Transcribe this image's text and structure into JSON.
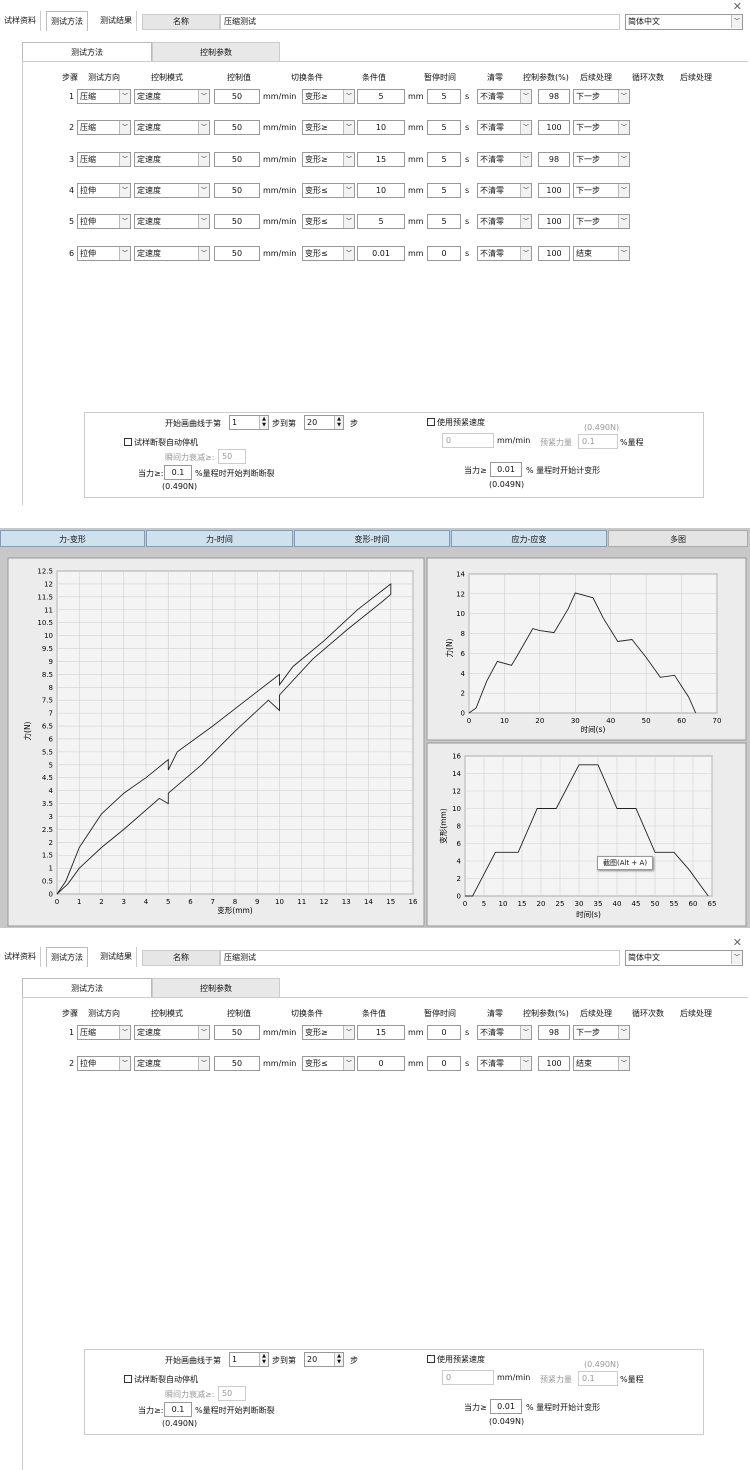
{
  "tabs": [
    "试样资料",
    "测试方法",
    "测试结果"
  ],
  "name_label": "名称",
  "panel1_name": "压缩测试",
  "panel3_name": "压缩测试",
  "language": "简体中文",
  "subtabs": [
    "测试方法",
    "控制参数"
  ],
  "headers": [
    "步骤",
    "测试方向",
    "控制模式",
    "控制值",
    "切换条件",
    "条件值",
    "暂停时间",
    "清零",
    "控制参数(%)",
    "后续处理",
    "循环次数",
    "后续处理"
  ],
  "rate_unit": "mm/min",
  "len_unit": "mm",
  "time_unit": "s",
  "panel1_steps": [
    {
      "no": "1",
      "dir": "压缩",
      "mode": "定速度",
      "val": "50",
      "cond": "变形≥",
      "cval": "5",
      "pause": "5",
      "zero": "不清零",
      "param": "98",
      "next": "下一步"
    },
    {
      "no": "2",
      "dir": "压缩",
      "mode": "定速度",
      "val": "50",
      "cond": "变形≥",
      "cval": "10",
      "pause": "5",
      "zero": "不清零",
      "param": "100",
      "next": "下一步"
    },
    {
      "no": "3",
      "dir": "压缩",
      "mode": "定速度",
      "val": "50",
      "cond": "变形≥",
      "cval": "15",
      "pause": "5",
      "zero": "不清零",
      "param": "98",
      "next": "下一步"
    },
    {
      "no": "4",
      "dir": "拉伸",
      "mode": "定速度",
      "val": "50",
      "cond": "变形≤",
      "cval": "10",
      "pause": "5",
      "zero": "不清零",
      "param": "100",
      "next": "下一步"
    },
    {
      "no": "5",
      "dir": "拉伸",
      "mode": "定速度",
      "val": "50",
      "cond": "变形≤",
      "cval": "5",
      "pause": "5",
      "zero": "不清零",
      "param": "100",
      "next": "下一步"
    },
    {
      "no": "6",
      "dir": "拉伸",
      "mode": "定速度",
      "val": "50",
      "cond": "变形≤",
      "cval": "0.01",
      "pause": "0",
      "zero": "不清零",
      "param": "100",
      "next": "结束"
    }
  ],
  "panel3_steps": [
    {
      "no": "1",
      "dir": "压缩",
      "mode": "定速度",
      "val": "50",
      "cond": "变形≥",
      "cval": "15",
      "pause": "0",
      "zero": "不清零",
      "param": "98",
      "next": "下一步"
    },
    {
      "no": "2",
      "dir": "拉伸",
      "mode": "定速度",
      "val": "50",
      "cond": "变形≤",
      "cval": "0",
      "pause": "0",
      "zero": "不清零",
      "param": "100",
      "next": "结束"
    }
  ],
  "bottom": {
    "start_curve": "开始画曲线于第",
    "start_val": "1",
    "step_to": "步到第",
    "step_to_val": "20",
    "step": "步",
    "auto_stop": "试样断裂自动停机",
    "instant_drop": "瞬间力衰减≥:",
    "instant_drop_val": "50",
    "force_ge": "当力≥:",
    "force_val": "0.1",
    "force_tail": "%量程时开始判断断裂",
    "force_n": "(0.490N)",
    "use_preload": "使用预紧速度",
    "preload_n": "(0.490N)",
    "preload_speed": "0",
    "preload_force": "预紧力量",
    "preload_force_val": "0.1",
    "range": "%量程",
    "deform_ge": "当力≥",
    "deform_val": "0.01",
    "deform_tail": "% 量程时开始计变形",
    "deform_n": "(0.049N)"
  },
  "chart_tabs": [
    "力-变形",
    "力-时间",
    "变形-时间",
    "应力-应变",
    "多图"
  ],
  "tooltip": "截图(Alt + A)",
  "chart_data": [
    {
      "type": "line",
      "xlabel": "变形(mm)",
      "ylabel": "力(N)",
      "xlim": [
        0,
        16
      ],
      "ylim": [
        0,
        12.5
      ],
      "xticks": [
        0,
        1,
        2,
        3,
        4,
        5,
        6,
        7,
        8,
        9,
        10,
        11,
        12,
        13,
        14,
        15,
        16
      ],
      "yticks": [
        0,
        0.5,
        1,
        1.5,
        2,
        2.5,
        3,
        3.5,
        4,
        4.5,
        5,
        5.5,
        6,
        6.5,
        7,
        7.5,
        8,
        8.5,
        9,
        9.5,
        10,
        10.5,
        11,
        11.5,
        12,
        12.5
      ],
      "x": [
        0,
        0.4,
        1,
        2,
        3,
        4,
        5,
        5,
        5.4,
        7,
        8.5,
        10,
        10,
        10.6,
        12,
        13.5,
        15,
        15,
        14.6,
        13,
        11.5,
        10,
        10,
        9.5,
        8,
        6.5,
        5,
        5,
        4.6,
        3,
        2,
        1,
        0.5,
        0
      ],
      "y": [
        0,
        0.5,
        1.8,
        3.1,
        3.9,
        4.5,
        5.2,
        4.8,
        5.5,
        6.5,
        7.5,
        8.5,
        8.1,
        8.8,
        9.8,
        11,
        12,
        11.6,
        11.3,
        10.2,
        9.1,
        7.7,
        7.1,
        7.5,
        6.3,
        5,
        3.9,
        3.5,
        3.7,
        2.5,
        1.8,
        1,
        0.4,
        0
      ]
    },
    {
      "type": "line",
      "xlabel": "时间(s)",
      "ylabel": "力(N)",
      "xlim": [
        0,
        70
      ],
      "ylim": [
        0,
        14
      ],
      "xticks": [
        0,
        10,
        20,
        30,
        40,
        50,
        60,
        70
      ],
      "yticks": [
        0,
        2,
        4,
        6,
        8,
        10,
        12,
        14
      ],
      "x": [
        0,
        2,
        5,
        8,
        12,
        14,
        18,
        20,
        24,
        28,
        30,
        35,
        38,
        42,
        46,
        50,
        54,
        58,
        62,
        64
      ],
      "y": [
        0,
        0.5,
        3.2,
        5.2,
        4.8,
        6,
        8.5,
        8.3,
        8.1,
        10.5,
        12.1,
        11.6,
        9.5,
        7.2,
        7.4,
        5.6,
        3.6,
        3.8,
        1.6,
        0
      ]
    },
    {
      "type": "line",
      "xlabel": "时间(s)",
      "ylabel": "变形(mm)",
      "xlim": [
        0,
        65
      ],
      "ylim": [
        0,
        16
      ],
      "xticks": [
        0,
        5,
        10,
        15,
        20,
        25,
        30,
        35,
        40,
        45,
        50,
        55,
        60,
        65
      ],
      "yticks": [
        0,
        2,
        4,
        6,
        8,
        10,
        12,
        14,
        16
      ],
      "x": [
        0,
        2,
        8,
        14,
        19,
        24,
        30,
        35,
        40,
        45,
        50,
        55,
        59,
        64
      ],
      "y": [
        0,
        0,
        5,
        5,
        10,
        10,
        15,
        15,
        10,
        10,
        5,
        5,
        3,
        0
      ]
    }
  ]
}
